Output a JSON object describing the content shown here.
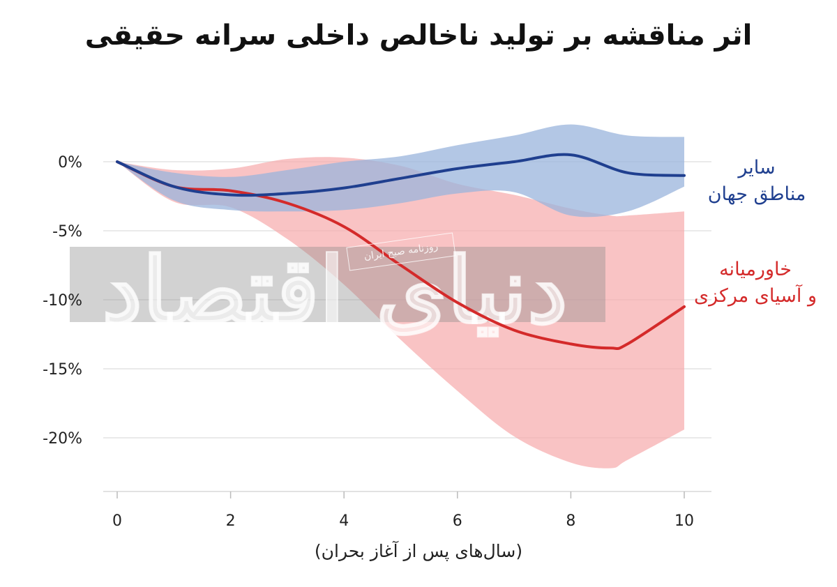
{
  "chart_data": {
    "type": "line",
    "title": "اثر مناقشه بر تولید ناخالص داخلی سرانه حقیقی",
    "xlabel": "(سال‌های پس از آغاز بحران)",
    "ylabel": "",
    "xlim": [
      0,
      10
    ],
    "ylim": [
      -25,
      3
    ],
    "x_ticks": [
      "0",
      "2",
      "4",
      "6",
      "8",
      "10"
    ],
    "y_ticks": [
      {
        "value": 0,
        "label": "0%"
      },
      {
        "value": -5,
        "label": "-5%"
      },
      {
        "value": -10,
        "label": "-10%"
      },
      {
        "value": -15,
        "label": "-15%"
      },
      {
        "value": -20,
        "label": "-20%"
      }
    ],
    "grid": true,
    "legend": "direct labels at right",
    "series": [
      {
        "name": "سایر مناطق جهان",
        "label_lines": [
          "سایر",
          "مناطق جهان"
        ],
        "color": "#1f3f8f",
        "band_color": "#9ab4dc",
        "x": [
          0,
          1,
          2,
          3,
          4,
          5,
          6,
          7,
          8,
          9,
          10
        ],
        "values": [
          0,
          -1.8,
          -2.4,
          -2.3,
          -1.9,
          -1.2,
          -0.5,
          0,
          0.5,
          -0.8,
          -1.0
        ],
        "lower": [
          0,
          -2.8,
          -3.5,
          -3.6,
          -3.5,
          -3.0,
          -2.3,
          -2.2,
          -3.9,
          -3.6,
          -1.8
        ],
        "upper": [
          0,
          -0.8,
          -1.1,
          -0.6,
          0,
          0.4,
          1.2,
          1.9,
          2.7,
          1.9,
          1.8
        ]
      },
      {
        "name": "خاورمیانه و آسیای مرکزی",
        "label_lines": [
          "خاورمیانه",
          "و آسیای مرکزی"
        ],
        "color": "#d42a2a",
        "band_color": "#f6a9ab",
        "x": [
          0,
          1,
          2,
          3,
          4,
          5,
          6,
          7,
          8,
          8.7,
          9,
          10
        ],
        "values": [
          0,
          -1.8,
          -2.1,
          -3.0,
          -4.7,
          -7.5,
          -10.2,
          -12.2,
          -13.2,
          -13.5,
          -13.2,
          -10.5
        ],
        "lower": [
          0,
          -2.9,
          -3.3,
          -5.6,
          -8.9,
          -12.9,
          -16.6,
          -19.9,
          -21.8,
          -22.2,
          -21.6,
          -19.4
        ],
        "upper": [
          0,
          -0.6,
          -0.5,
          0.2,
          0.3,
          -0.3,
          -1.6,
          -2.4,
          -3.4,
          -3.9,
          -3.9,
          -3.6
        ]
      }
    ]
  },
  "watermark": {
    "main_text": "دنیای اقتصاد",
    "stamp_text": "روزنامه صبح ایران"
  }
}
